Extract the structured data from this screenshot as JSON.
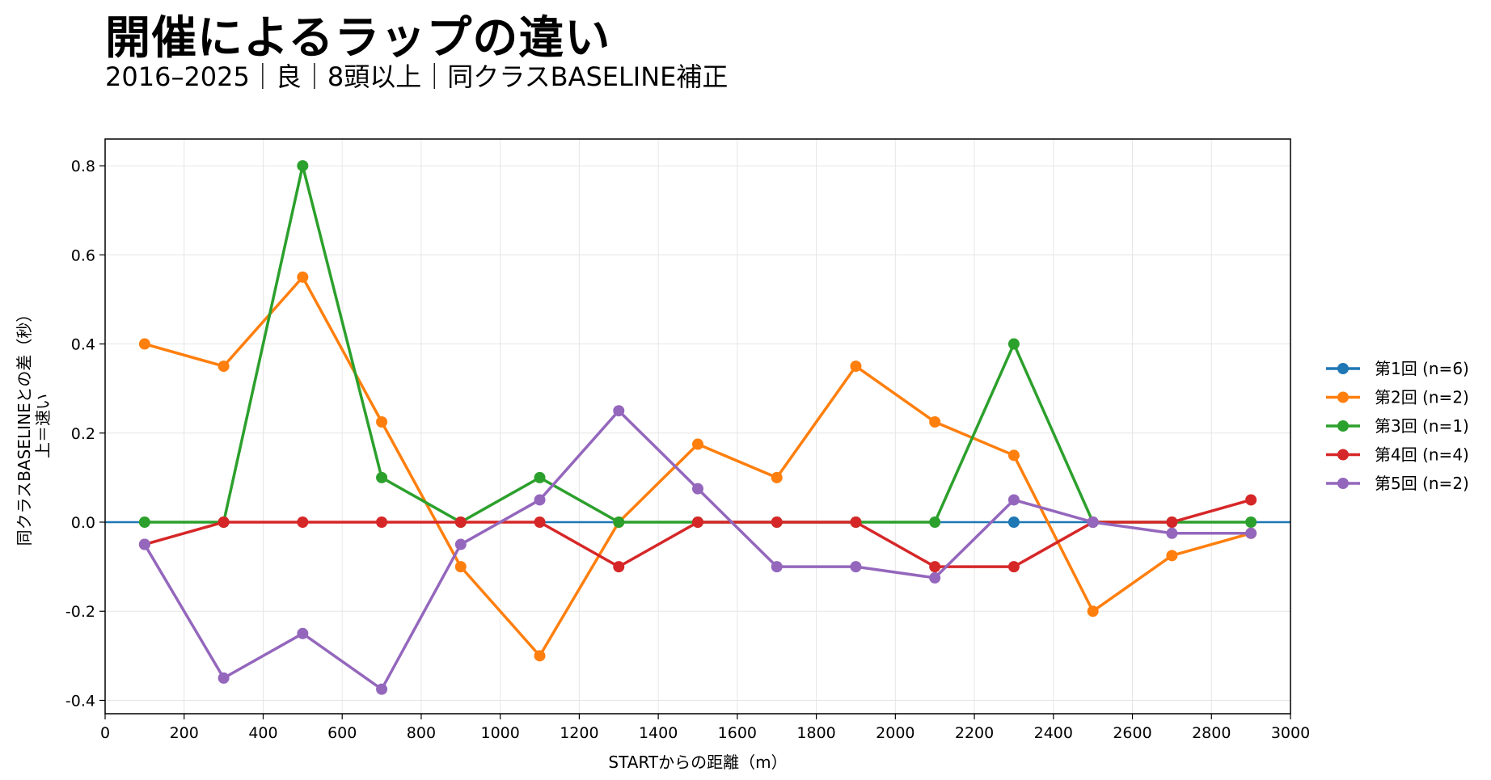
{
  "header": {
    "title": "開催によるラップの違い",
    "subtitle": "2016–2025｜良｜8頭以上｜同クラスBASELINE補正"
  },
  "chart_data": {
    "type": "line",
    "xlabel": "STARTからの距離（m）",
    "ylabel_lines": [
      "同クラスBASELINEとの差（秒）",
      "上＝速い"
    ],
    "xlim": [
      0,
      3000
    ],
    "ylim": [
      -0.43,
      0.86
    ],
    "xticks": [
      0,
      200,
      400,
      600,
      800,
      1000,
      1200,
      1400,
      1600,
      1800,
      2000,
      2200,
      2400,
      2600,
      2800,
      3000
    ],
    "yticks": [
      -0.4,
      -0.2,
      0.0,
      0.2,
      0.4,
      0.6,
      0.8
    ],
    "ytick_labels": [
      "-0.4",
      "-0.2",
      "0.0",
      "0.2",
      "0.4",
      "0.6",
      "0.8"
    ],
    "grid": true,
    "legend_position": "right",
    "x": [
      100,
      300,
      500,
      700,
      900,
      1100,
      1300,
      1500,
      1700,
      1900,
      2100,
      2300,
      2500,
      2700,
      2900
    ],
    "series": [
      {
        "name": "第1回 (n=6)",
        "color": "#1f77b4",
        "values": [
          null,
          null,
          null,
          null,
          null,
          null,
          null,
          null,
          null,
          null,
          null,
          0.0,
          null,
          null,
          null
        ]
      },
      {
        "name": "第2回 (n=2)",
        "color": "#ff7f0e",
        "values": [
          0.4,
          0.35,
          0.55,
          0.225,
          -0.1,
          -0.3,
          0.0,
          0.175,
          0.1,
          0.35,
          0.225,
          0.15,
          -0.2,
          -0.075,
          -0.025
        ]
      },
      {
        "name": "第3回 (n=1)",
        "color": "#2ca02c",
        "values": [
          0.0,
          0.0,
          0.8,
          0.1,
          0.0,
          0.1,
          0.0,
          0.0,
          0.0,
          0.0,
          0.0,
          0.4,
          0.0,
          0.0,
          0.0
        ]
      },
      {
        "name": "第4回 (n=4)",
        "color": "#d62728",
        "values": [
          -0.05,
          0.0,
          0.0,
          0.0,
          0.0,
          0.0,
          -0.1,
          0.0,
          0.0,
          0.0,
          -0.1,
          -0.1,
          0.0,
          0.0,
          0.05
        ]
      },
      {
        "name": "第5回 (n=2)",
        "color": "#9467bd",
        "values": [
          -0.05,
          -0.35,
          -0.25,
          -0.375,
          -0.05,
          0.05,
          0.25,
          0.075,
          -0.1,
          -0.1,
          -0.125,
          0.05,
          0.0,
          -0.025,
          -0.025
        ]
      }
    ],
    "reference_line": {
      "y": 0.0,
      "color": "#1f77b4"
    }
  }
}
